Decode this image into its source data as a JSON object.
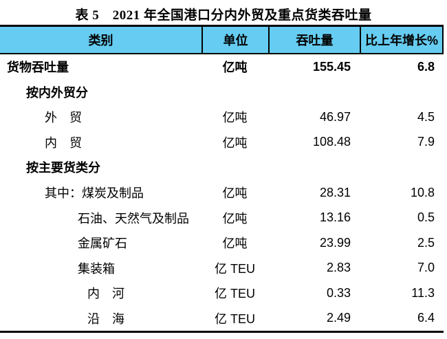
{
  "title": "表 5　2021 年全国港口分内外贸及重点货类吞吐量",
  "table": {
    "header_bg": "#66ccf1",
    "border_color": "#000000",
    "headers": [
      "类别",
      "单位",
      "吞吐量",
      "比上年增长%"
    ],
    "rows": [
      {
        "category": "货物吞吐量",
        "unit": "亿吨",
        "throughput": "155.45",
        "growth": "6.8",
        "bold": true,
        "indent": 0
      },
      {
        "category": "按内外贸分",
        "unit": "",
        "throughput": "",
        "growth": "",
        "bold": true,
        "indent": 1
      },
      {
        "category": "外　贸",
        "unit": "亿吨",
        "throughput": "46.97",
        "growth": "4.5",
        "bold": false,
        "indent": 2
      },
      {
        "category": "内　贸",
        "unit": "亿吨",
        "throughput": "108.48",
        "growth": "7.9",
        "bold": false,
        "indent": 2
      },
      {
        "category": "按主要货类分",
        "unit": "",
        "throughput": "",
        "growth": "",
        "bold": true,
        "indent": 1
      },
      {
        "category": "其中：煤炭及制品",
        "unit": "亿吨",
        "throughput": "28.31",
        "growth": "10.8",
        "bold": false,
        "indent": 2
      },
      {
        "category": "石油、天然气及制品",
        "unit": "亿吨",
        "throughput": "13.16",
        "growth": "0.5",
        "bold": false,
        "indent": 3
      },
      {
        "category": "金属矿石",
        "unit": "亿吨",
        "throughput": "23.99",
        "growth": "2.5",
        "bold": false,
        "indent": 3
      },
      {
        "category": "集装箱",
        "unit": "亿 TEU",
        "throughput": "2.83",
        "growth": "7.0",
        "bold": false,
        "indent": 3
      },
      {
        "category": "内　河",
        "unit": "亿 TEU",
        "throughput": "0.33",
        "growth": "11.3",
        "bold": false,
        "indent": 4
      },
      {
        "category": "沿　海",
        "unit": "亿 TEU",
        "throughput": "2.49",
        "growth": "6.4",
        "bold": false,
        "indent": 4
      }
    ]
  }
}
